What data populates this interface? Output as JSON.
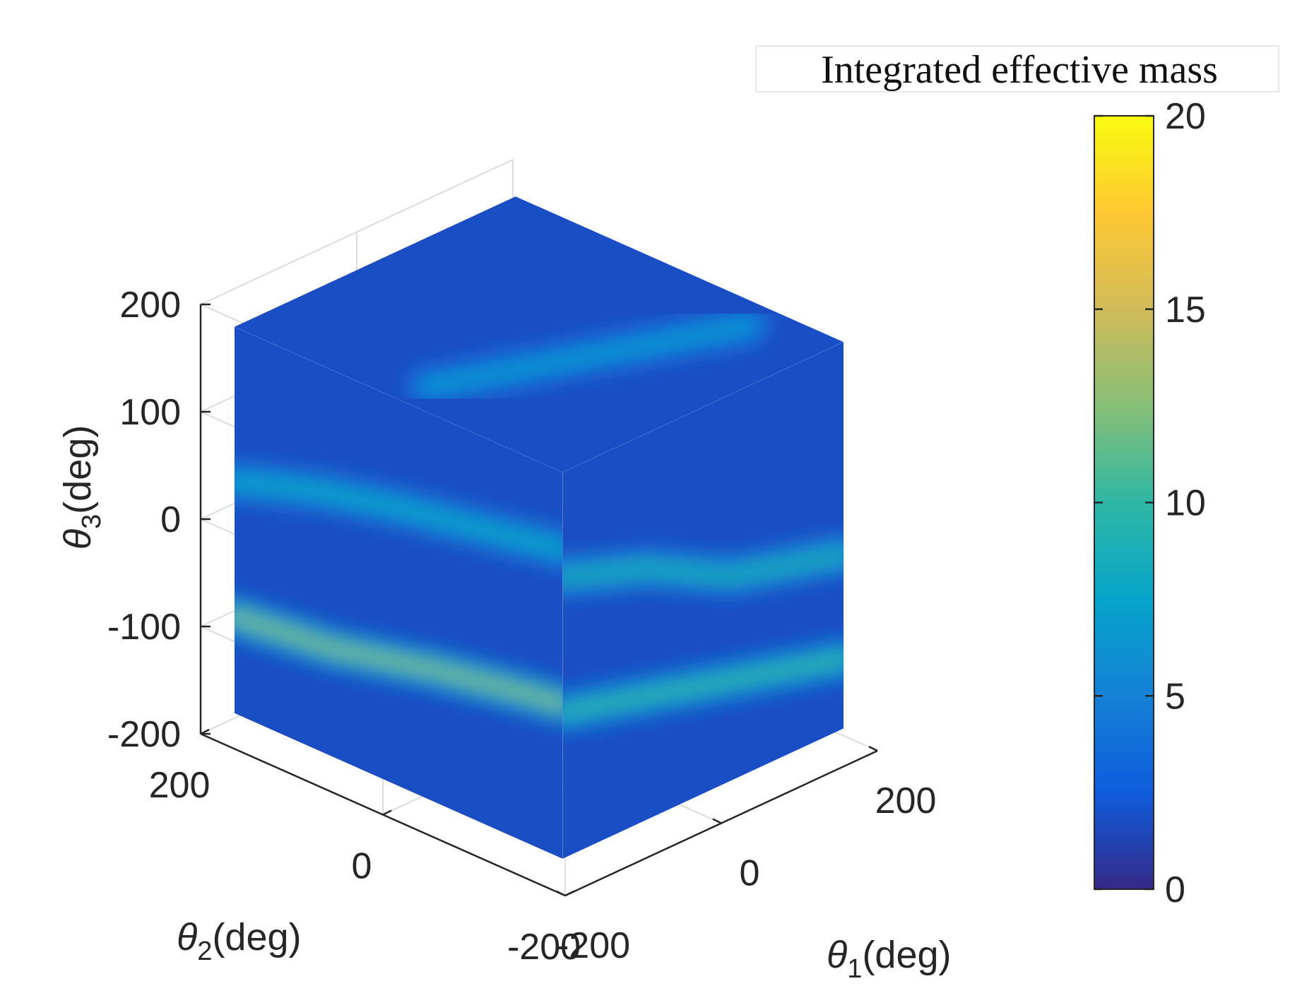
{
  "chart_data": {
    "type": "heatmap",
    "plot_kind": "3d-surface-cube",
    "axes": {
      "x": {
        "label": "θ",
        "subscript": "1",
        "unit": "(deg)",
        "ticks": [
          "-200",
          "0",
          "200"
        ],
        "range": [
          -200,
          200
        ]
      },
      "y": {
        "label": "θ",
        "subscript": "2",
        "unit": "(deg)",
        "ticks": [
          "-200",
          "0",
          "200"
        ],
        "range": [
          -200,
          200
        ]
      },
      "z": {
        "label": "θ",
        "subscript": "3",
        "unit": "(deg)",
        "ticks": [
          "-200",
          "-100",
          "0",
          "100",
          "200"
        ],
        "range": [
          -200,
          200
        ]
      }
    },
    "cube_extent": {
      "x": [
        -180,
        180
      ],
      "y": [
        -180,
        180
      ],
      "z": [
        -180,
        180
      ]
    },
    "grid": true,
    "colorbar": {
      "title": "Integrated effective mass",
      "ticks": [
        "0",
        "5",
        "10",
        "15",
        "20"
      ],
      "range": [
        0,
        20
      ],
      "colormap": "parula",
      "placement": "right"
    },
    "colormap_stops": [
      "#352a87",
      "#0f5cdd",
      "#1481d6",
      "#06a4ca",
      "#2eb7a4",
      "#87bf77",
      "#d1bb59",
      "#fec832",
      "#f9fb0e"
    ],
    "face_background_value": 1.8,
    "ridges": [
      {
        "face": "front-left",
        "points": [
          [
            0.0,
            0.4
          ],
          [
            0.25,
            0.33
          ],
          [
            0.5,
            0.28
          ],
          [
            0.75,
            0.24
          ],
          [
            1.0,
            0.2
          ]
        ],
        "peak": 8
      },
      {
        "face": "front-left",
        "points": [
          [
            0.0,
            0.75
          ],
          [
            0.3,
            0.72
          ],
          [
            0.6,
            0.66
          ],
          [
            0.85,
            0.62
          ],
          [
            1.0,
            0.6
          ]
        ],
        "peak": 12
      },
      {
        "face": "front-right",
        "points": [
          [
            0.0,
            0.27
          ],
          [
            0.3,
            0.35
          ],
          [
            0.6,
            0.47
          ],
          [
            1.0,
            0.55
          ]
        ],
        "peak": 9
      },
      {
        "face": "front-right",
        "points": [
          [
            0.0,
            0.62
          ],
          [
            0.3,
            0.68
          ],
          [
            0.6,
            0.74
          ],
          [
            1.0,
            0.82
          ]
        ],
        "peak": 10
      },
      {
        "face": "top",
        "points": [
          [
            0.1,
            0.5
          ],
          [
            0.5,
            0.35
          ],
          [
            0.9,
            0.2
          ]
        ],
        "peak": 7
      }
    ]
  }
}
